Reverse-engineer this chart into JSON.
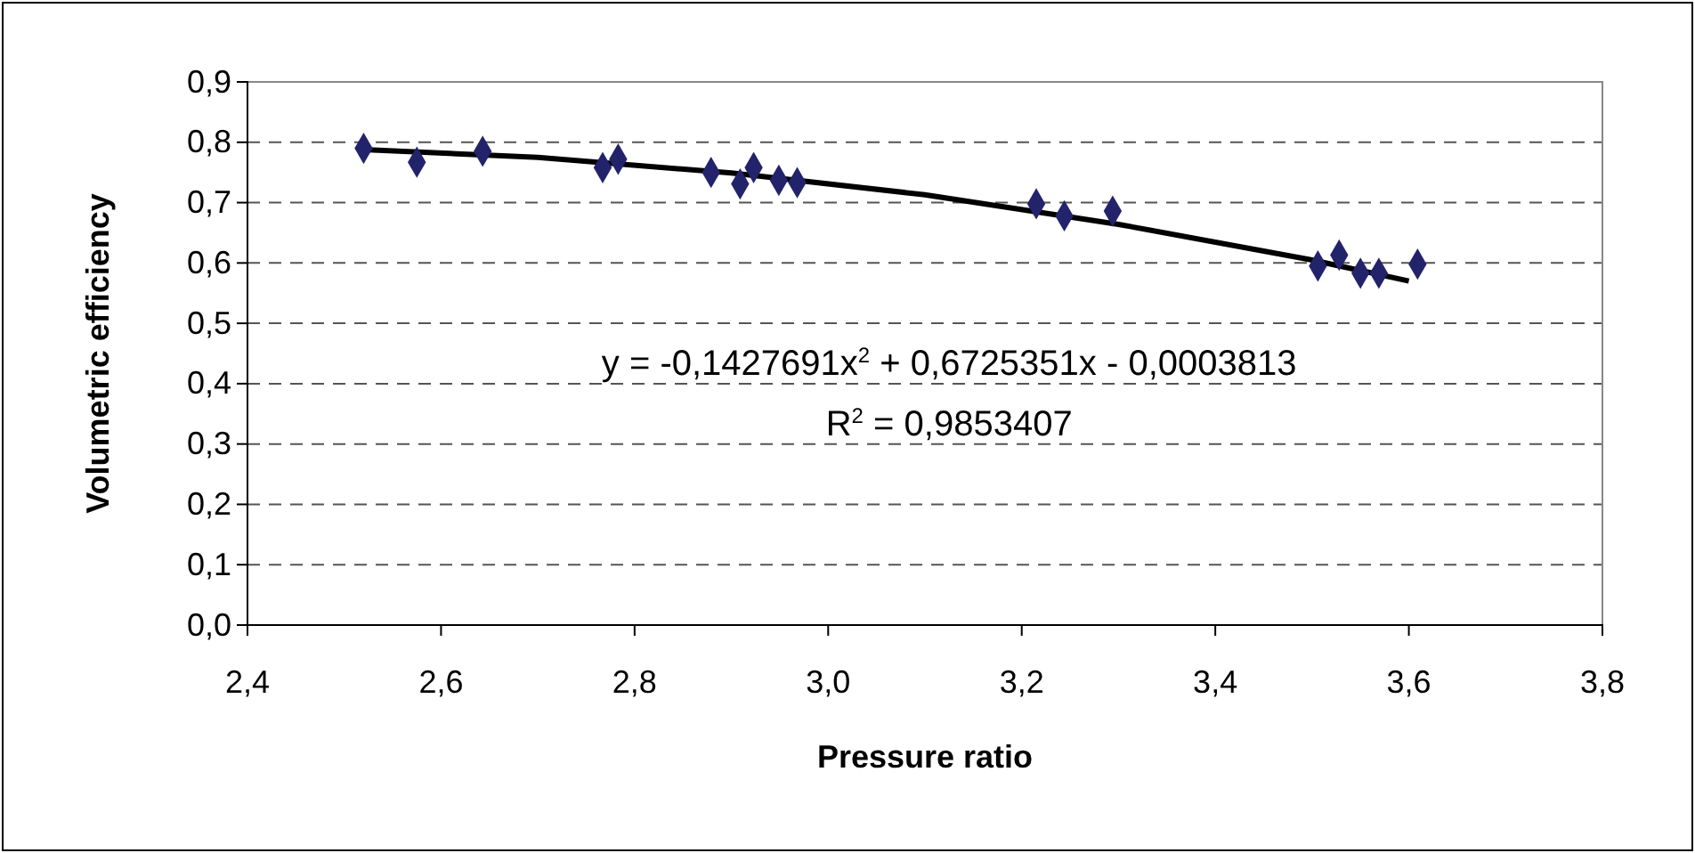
{
  "chart_data": {
    "type": "scatter",
    "xlabel": "Pressure ratio",
    "ylabel": "Volumetric efficiency",
    "xlim": [
      2.4,
      3.8
    ],
    "ylim": [
      0,
      0.9
    ],
    "xticks": [
      {
        "value": 2.4,
        "label": "2,4"
      },
      {
        "value": 2.6,
        "label": "2,6"
      },
      {
        "value": 2.8,
        "label": "2,8"
      },
      {
        "value": 3.0,
        "label": "3,0"
      },
      {
        "value": 3.2,
        "label": "3,2"
      },
      {
        "value": 3.4,
        "label": "3,4"
      },
      {
        "value": 3.6,
        "label": "3,6"
      },
      {
        "value": 3.8,
        "label": "3,8"
      }
    ],
    "yticks": [
      {
        "value": 0,
        "label": "0,0"
      },
      {
        "value": 0.1,
        "label": "0,1"
      },
      {
        "value": 0.2,
        "label": "0,2"
      },
      {
        "value": 0.3,
        "label": "0,3"
      },
      {
        "value": 0.4,
        "label": "0,4"
      },
      {
        "value": 0.5,
        "label": "0,5"
      },
      {
        "value": 0.6,
        "label": "0,6"
      },
      {
        "value": 0.7,
        "label": "0,7"
      },
      {
        "value": 0.8,
        "label": "0,8"
      },
      {
        "value": 0.9,
        "label": "0,9"
      }
    ],
    "grid": "y",
    "series": [
      {
        "marker": "diamond",
        "color": "#23236b",
        "x": [
          2.52,
          2.575,
          2.643,
          2.767,
          2.783,
          2.879,
          2.909,
          2.923,
          2.949,
          2.968,
          3.215,
          3.244,
          3.294,
          3.506,
          3.528,
          3.55,
          3.569,
          3.609
        ],
        "values": [
          0.79,
          0.767,
          0.785,
          0.758,
          0.772,
          0.75,
          0.731,
          0.758,
          0.737,
          0.733,
          0.698,
          0.678,
          0.686,
          0.595,
          0.613,
          0.583,
          0.583,
          0.598
        ]
      },
      {
        "type": "line",
        "marker": "none",
        "line_style": "solid",
        "color": "#000000",
        "x": [
          2.52,
          2.7,
          2.9,
          3.1,
          3.3,
          3.5,
          3.6
        ],
        "values": [
          0.788,
          0.775,
          0.749,
          0.713,
          0.664,
          0.605,
          0.57
        ]
      }
    ],
    "annotations": [
      "y = -0,1427691x$^{2}$ + 0,6725351x - 0,0003813",
      "R$^{2}$ = 0,9853407"
    ]
  }
}
